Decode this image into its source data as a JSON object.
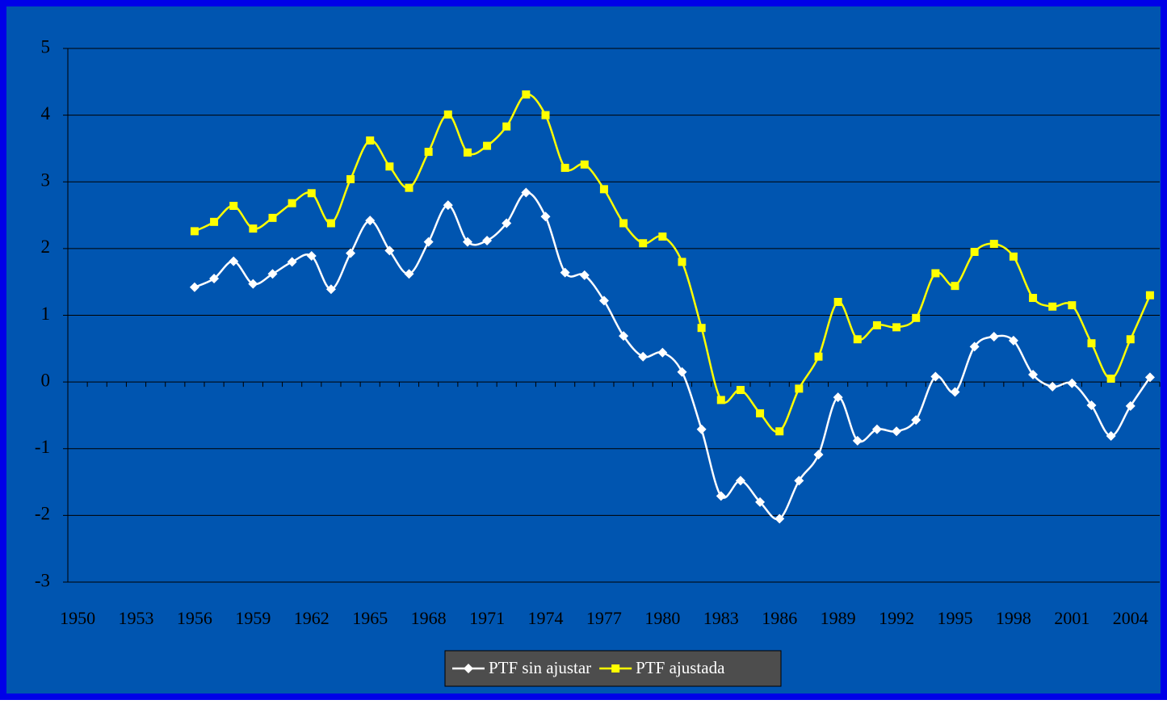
{
  "chart_data": {
    "type": "line",
    "categories": [
      "1950",
      null,
      null,
      "1953",
      null,
      null,
      "1956",
      null,
      null,
      "1959",
      null,
      null,
      "1962",
      null,
      null,
      "1965",
      null,
      null,
      "1968",
      null,
      null,
      "1971",
      null,
      null,
      "1974",
      null,
      null,
      "1977",
      null,
      null,
      "1980",
      null,
      null,
      "1983",
      null,
      null,
      "1986",
      null,
      null,
      "1989",
      null,
      null,
      "1992",
      null,
      null,
      "1995",
      null,
      null,
      "1998",
      null,
      null,
      "2001",
      null,
      null,
      "2004",
      null
    ],
    "series": [
      {
        "name": "PTF sin ajustar",
        "color": "#ffffff",
        "marker": "diamond",
        "values": [
          null,
          null,
          null,
          null,
          null,
          null,
          1.42,
          1.55,
          1.81,
          1.47,
          1.62,
          1.8,
          1.89,
          1.39,
          1.93,
          2.42,
          1.97,
          1.62,
          2.1,
          2.65,
          2.1,
          2.12,
          2.38,
          2.84,
          2.48,
          1.64,
          1.6,
          1.22,
          0.69,
          0.38,
          0.44,
          0.15,
          -0.71,
          -1.71,
          -1.48,
          -1.8,
          -2.05,
          -1.48,
          -1.09,
          -0.23,
          -0.88,
          -0.71,
          -0.74,
          -0.57,
          0.08,
          -0.15,
          0.53,
          0.68,
          0.62,
          0.11,
          -0.07,
          -0.02,
          -0.35,
          -0.81,
          -0.36,
          0.07
        ]
      },
      {
        "name": "PTF ajustada",
        "color": "#ffff00",
        "marker": "square",
        "values": [
          null,
          null,
          null,
          null,
          null,
          null,
          2.26,
          2.4,
          2.64,
          2.3,
          2.46,
          2.68,
          2.83,
          2.38,
          3.04,
          3.62,
          3.23,
          2.91,
          3.45,
          4.01,
          3.44,
          3.54,
          3.83,
          4.31,
          4.0,
          3.21,
          3.26,
          2.89,
          2.38,
          2.08,
          2.18,
          1.8,
          0.81,
          -0.27,
          -0.12,
          -0.47,
          -0.74,
          -0.1,
          0.38,
          1.2,
          0.64,
          0.85,
          0.82,
          0.96,
          1.63,
          1.44,
          1.95,
          2.07,
          1.88,
          1.26,
          1.13,
          1.15,
          0.58,
          0.05,
          0.64,
          1.3
        ]
      }
    ],
    "ylim": [
      -3,
      5
    ],
    "yticks": [
      -3,
      -2,
      -1,
      0,
      1,
      2,
      3,
      4,
      5
    ],
    "grid": true,
    "smooth": true,
    "legend": "bottom"
  }
}
